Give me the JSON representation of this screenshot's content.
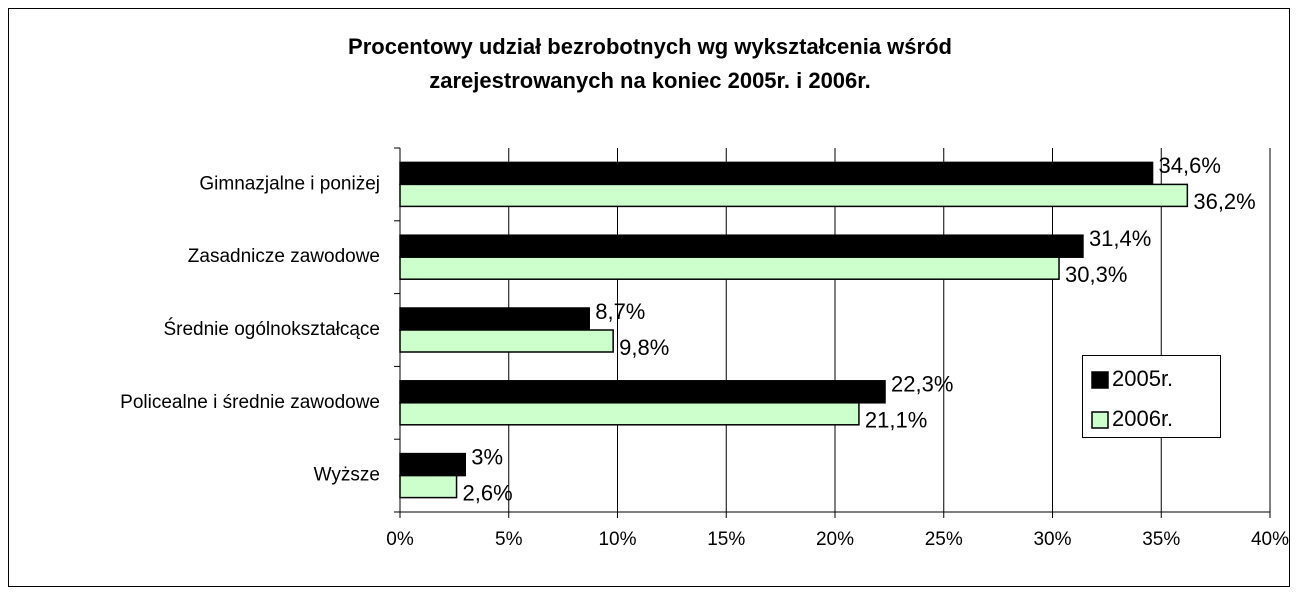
{
  "chart_data": {
    "type": "hbar",
    "title": [
      "Procentowy udział bezrobotnych wg wykształcenia wśród",
      "zarejestrowanych na koniec 2005r. i 2006r."
    ],
    "categories": [
      "Gimnazjalne i poniżej",
      "Zasadnicze zawodowe",
      "Średnie ogólnokształcące",
      "Policealne i średnie zawodowe",
      "Wyższe"
    ],
    "series": [
      {
        "name": "2005r.",
        "color": "#000000",
        "values": [
          34.6,
          31.4,
          8.7,
          22.3,
          3
        ],
        "value_labels": [
          "34,6%",
          "31,4%",
          "8,7%",
          "22,3%",
          "3%"
        ]
      },
      {
        "name": "2006r.",
        "color": "#ccffcc",
        "values": [
          36.2,
          30.3,
          9.8,
          21.1,
          2.6
        ],
        "value_labels": [
          "36,2%",
          "30,3%",
          "9,8%",
          "21,1%",
          "2,6%"
        ]
      }
    ],
    "xlim": [
      0,
      40
    ],
    "xticks": [
      {
        "value": 0,
        "label": "0%"
      },
      {
        "value": 5,
        "label": "5%"
      },
      {
        "value": 10,
        "label": "10%"
      },
      {
        "value": 15,
        "label": "15%"
      },
      {
        "value": 20,
        "label": "20%"
      },
      {
        "value": 25,
        "label": "25%"
      },
      {
        "value": 30,
        "label": "30%"
      },
      {
        "value": 35,
        "label": "35%"
      },
      {
        "value": 40,
        "label": "40%"
      }
    ],
    "grid": true,
    "legend": "right"
  }
}
